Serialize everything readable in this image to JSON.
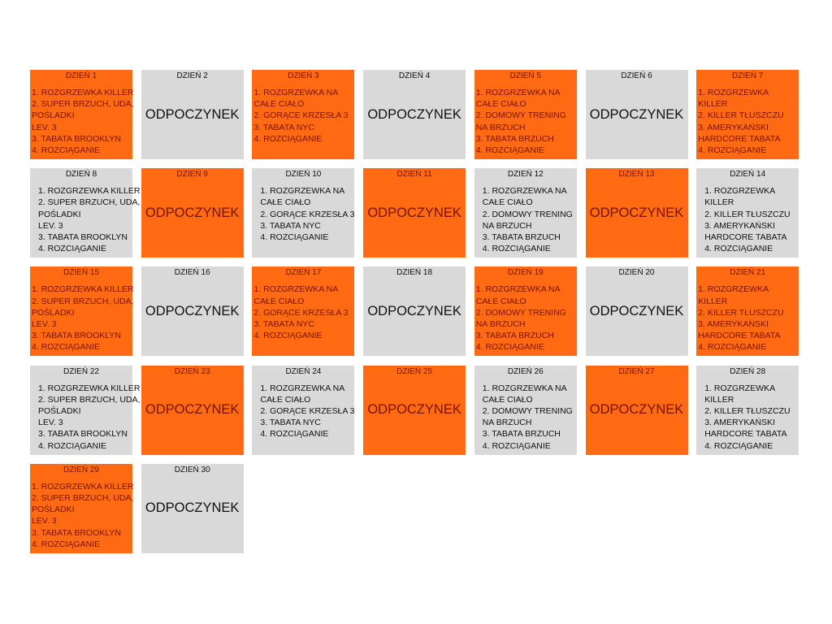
{
  "days": [
    {
      "title": "DZIEŃ 1",
      "lines": [
        "1. ROZGRZEWKA KILLER",
        "2. SUPER BRZUCH, UDA,",
        "POŚLADKI",
        "LEV. 3",
        "3. TABATA BROOKLYN",
        "4. ROZCIĄGANIE"
      ]
    },
    {
      "title": "DZIEŃ 2",
      "rest": "ODPOCZYNEK"
    },
    {
      "title": "DZIEŃ 3",
      "lines": [
        "1. ROZGRZEWKA NA",
        "CAŁE CIAŁO",
        "2. GORĄCE KRZESŁA 3",
        "3. TABATA NYC",
        "4. ROZCIĄGANIE"
      ]
    },
    {
      "title": "DZIEŃ 4",
      "rest": "ODPOCZYNEK"
    },
    {
      "title": "DZIEŃ 5",
      "lines": [
        "1. ROZGRZEWKA NA",
        "CAŁE CIAŁO",
        "2. DOMOWY TRENING",
        "NA BRZUCH",
        "3. TABATA BRZUCH",
        "4. ROZCIĄGANIE"
      ]
    },
    {
      "title": "DZIEŃ 6",
      "rest": "ODPOCZYNEK"
    },
    {
      "title": "DZIEŃ 7",
      "lines": [
        "1. ROZGRZEWKA",
        "KILLER",
        "2. KILLER TŁUSZCZU",
        "3. AMERYKAŃSKI",
        "HARDCORE TABATA",
        "4. ROZCIĄGANIE"
      ]
    },
    {
      "title": "DZIEŃ 8",
      "lines": [
        "1. ROZGRZEWKA KILLER",
        "2. SUPER BRZUCH, UDA,",
        "POŚLADKI",
        "LEV. 3",
        "3. TABATA BROOKLYN",
        "4. ROZCIĄGANIE"
      ]
    },
    {
      "title": "DZIEŃ 9",
      "rest": "ODPOCZYNEK"
    },
    {
      "title": "DZIEŃ 10",
      "lines": [
        "1. ROZGRZEWKA NA",
        "CAŁE CIAŁO",
        "2. GORĄCE KRZESŁA 3",
        "3. TABATA NYC",
        "4. ROZCIĄGANIE"
      ]
    },
    {
      "title": "DZIEŃ 11",
      "rest": "ODPOCZYNEK"
    },
    {
      "title": "DZIEŃ 12",
      "lines": [
        "1. ROZGRZEWKA NA",
        "CAŁE CIAŁO",
        "2. DOMOWY TRENING",
        "NA BRZUCH",
        "3. TABATA BRZUCH",
        "4. ROZCIĄGANIE"
      ]
    },
    {
      "title": "DZIEŃ 13",
      "rest": "ODPOCZYNEK"
    },
    {
      "title": "DZIEŃ 14",
      "lines": [
        "1. ROZGRZEWKA",
        "KILLER",
        "2. KILLER TŁUSZCZU",
        "3. AMERYKAŃSKI",
        "HARDCORE TABATA",
        "4. ROZCIĄGANIE"
      ]
    },
    {
      "title": "DZIEŃ 15",
      "lines": [
        "1. ROZGRZEWKA KILLER",
        "2. SUPER BRZUCH, UDA,",
        "POŚLADKI",
        "LEV. 3",
        "3. TABATA BROOKLYN",
        "4. ROZCIĄGANIE"
      ]
    },
    {
      "title": "DZIEŃ 16",
      "rest": "ODPOCZYNEK"
    },
    {
      "title": "DZIEŃ 17",
      "lines": [
        "1. ROZGRZEWKA NA",
        "CAŁE CIAŁO",
        "2. GORĄCE KRZESŁA 3",
        "3. TABATA NYC",
        "4. ROZCIĄGANIE"
      ]
    },
    {
      "title": "DZIEŃ 18",
      "rest": "ODPOCZYNEK"
    },
    {
      "title": "DZIEŃ 19",
      "lines": [
        "1. ROZGRZEWKA NA",
        "CAŁE CIAŁO",
        "2. DOMOWY TRENING",
        "NA BRZUCH",
        "3. TABATA BRZUCH",
        "4. ROZCIĄGANIE"
      ]
    },
    {
      "title": "DZIEŃ 20",
      "rest": "ODPOCZYNEK"
    },
    {
      "title": "DZIEŃ 21",
      "lines": [
        "1. ROZGRZEWKA",
        "KILLER",
        "2. KILLER TŁUSZCZU",
        "3. AMERYKAŃSKI",
        "HARDCORE TABATA",
        "4. ROZCIĄGANIE"
      ]
    },
    {
      "title": "DZIEŃ 22",
      "lines": [
        "1. ROZGRZEWKA KILLER",
        "2. SUPER BRZUCH, UDA,",
        "POŚLADKI",
        "LEV. 3",
        "3. TABATA BROOKLYN",
        "4. ROZCIĄGANIE"
      ]
    },
    {
      "title": "DZIEŃ 23",
      "rest": "ODPOCZYNEK"
    },
    {
      "title": "DZIEŃ 24",
      "lines": [
        "1. ROZGRZEWKA NA",
        "CAŁE CIAŁO",
        "2. GORĄCE KRZESŁA 3",
        "3. TABATA NYC",
        "4. ROZCIĄGANIE"
      ]
    },
    {
      "title": "DZIEŃ 25",
      "rest": "ODPOCZYNEK"
    },
    {
      "title": "DZIEŃ 26",
      "lines": [
        "1. ROZGRZEWKA NA",
        "CAŁE CIAŁO",
        "2. DOMOWY TRENING",
        "NA BRZUCH",
        "3. TABATA BRZUCH",
        "4. ROZCIĄGANIE"
      ]
    },
    {
      "title": "DZIEŃ 27",
      "rest": "ODPOCZYNEK"
    },
    {
      "title": "DZIEŃ 28",
      "lines": [
        "1. ROZGRZEWKA",
        "KILLER",
        "2. KILLER TŁUSZCZU",
        "3. AMERYKAŃSKI",
        "HARDCORE TABATA",
        "4. ROZCIĄGANIE"
      ]
    },
    {
      "title": "DZIEŃ 29",
      "lines": [
        "1. ROZGRZEWKA KILLER",
        "2. SUPER BRZUCH, UDA,",
        "POŚLADKI",
        "LEV. 3",
        "3. TABATA BROOKLYN",
        "4. ROZCIĄGANIE"
      ]
    },
    {
      "title": "DZIEŃ 30",
      "rest": "ODPOCZYNEK"
    }
  ]
}
